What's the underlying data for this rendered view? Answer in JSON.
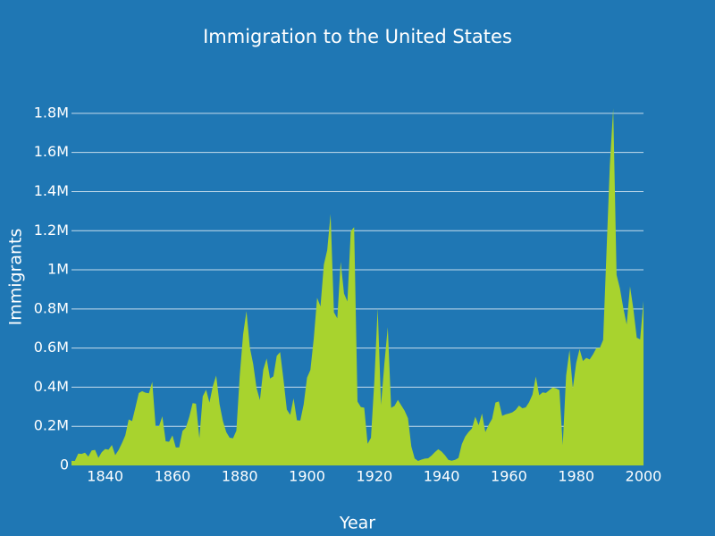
{
  "chart_data": {
    "type": "area",
    "title": "Immigration to the United States",
    "x_label": "Year",
    "y_label": "Immigrants",
    "x": [
      1830,
      1831,
      1832,
      1833,
      1834,
      1835,
      1836,
      1837,
      1838,
      1839,
      1840,
      1841,
      1842,
      1843,
      1844,
      1845,
      1846,
      1847,
      1848,
      1849,
      1850,
      1851,
      1852,
      1853,
      1854,
      1855,
      1856,
      1857,
      1858,
      1859,
      1860,
      1861,
      1862,
      1863,
      1864,
      1865,
      1866,
      1867,
      1868,
      1869,
      1870,
      1871,
      1872,
      1873,
      1874,
      1875,
      1876,
      1877,
      1878,
      1879,
      1880,
      1881,
      1882,
      1883,
      1884,
      1885,
      1886,
      1887,
      1888,
      1889,
      1890,
      1891,
      1892,
      1893,
      1894,
      1895,
      1896,
      1897,
      1898,
      1899,
      1900,
      1901,
      1902,
      1903,
      1904,
      1905,
      1906,
      1907,
      1908,
      1909,
      1910,
      1911,
      1912,
      1913,
      1914,
      1915,
      1916,
      1917,
      1918,
      1919,
      1920,
      1921,
      1922,
      1923,
      1924,
      1925,
      1926,
      1927,
      1928,
      1929,
      1930,
      1931,
      1932,
      1933,
      1934,
      1935,
      1936,
      1937,
      1938,
      1939,
      1940,
      1941,
      1942,
      1943,
      1944,
      1945,
      1946,
      1947,
      1948,
      1949,
      1950,
      1951,
      1952,
      1953,
      1954,
      1955,
      1956,
      1957,
      1958,
      1959,
      1960,
      1961,
      1962,
      1963,
      1964,
      1965,
      1966,
      1967,
      1968,
      1969,
      1970,
      1971,
      1972,
      1973,
      1974,
      1975,
      1976,
      1977,
      1978,
      1979,
      1980,
      1981,
      1982,
      1983,
      1984,
      1985,
      1986,
      1987,
      1988,
      1989,
      1990,
      1991,
      1992,
      1993,
      1994,
      1995,
      1996,
      1997,
      1998,
      1999,
      2000
    ],
    "series": [
      {
        "name": "Immigrants",
        "color": "#a8d32e",
        "values": [
          23322,
          22633,
          60482,
          58640,
          65365,
          45374,
          76242,
          79340,
          38914,
          68069,
          84066,
          80289,
          104565,
          52496,
          78615,
          114371,
          154416,
          234968,
          226527,
          297024,
          369980,
          379466,
          371603,
          368645,
          427833,
          200877,
          200436,
          251306,
          123126,
          121282,
          153640,
          91918,
          91985,
          176282,
          193418,
          248120,
          318568,
          315722,
          138840,
          352768,
          387203,
          321350,
          404806,
          459803,
          313339,
          227498,
          169986,
          141857,
          138469,
          177826,
          457257,
          669431,
          788992,
          603322,
          518592,
          395346,
          334203,
          490109,
          546889,
          444427,
          455302,
          560319,
          579663,
          439730,
          285631,
          258536,
          343267,
          230832,
          229299,
          311715,
          448572,
          487918,
          648743,
          857046,
          812870,
          1026499,
          1100735,
          1285349,
          782870,
          751786,
          1041570,
          878587,
          838172,
          1197892,
          1218480,
          326700,
          298826,
          295403,
          110618,
          141132,
          430001,
          805228,
          309556,
          522919,
          706896,
          294314,
          304488,
          335175,
          307255,
          279678,
          241700,
          97139,
          35576,
          23068,
          29470,
          34956,
          36329,
          50244,
          67895,
          82998,
          70756,
          51776,
          28781,
          23725,
          28551,
          38119,
          108721,
          147292,
          170570,
          188317,
          249187,
          205717,
          265520,
          170434,
          208177,
          237790,
          321625,
          326867,
          253265,
          260686,
          265398,
          271344,
          283763,
          306260,
          292248,
          296697,
          323040,
          361972,
          454448,
          358579,
          373326,
          370478,
          384685,
          398515,
          393919,
          385378,
          103676,
          458755,
          589810,
          394244,
          524295,
          595014,
          533624,
          550052,
          541811,
          568149,
          600027,
          599889,
          641346,
          1090172,
          1535872,
          1826595,
          973977,
          904292,
          804416,
          720461,
          915900,
          798378,
          653206,
          644787,
          841002
        ]
      }
    ],
    "xlim": [
      1830,
      2000
    ],
    "xticks": [
      1840,
      1860,
      1880,
      1900,
      1920,
      1940,
      1960,
      1980,
      2000
    ],
    "ylim": [
      0,
      1900000
    ],
    "yticks": [
      0,
      {
        "value": 200000,
        "label": "0.2M"
      },
      {
        "value": 400000,
        "label": "0.4M"
      },
      {
        "value": 600000,
        "label": "0.6M"
      },
      {
        "value": 800000,
        "label": "0.8M"
      },
      {
        "value": 1000000,
        "label": "1M"
      },
      {
        "value": 1200000,
        "label": "1.2M"
      },
      {
        "value": 1400000,
        "label": "1.4M"
      },
      {
        "value": 1600000,
        "label": "1.6M"
      },
      {
        "value": 1800000,
        "label": "1.8M"
      }
    ],
    "grid": true
  }
}
